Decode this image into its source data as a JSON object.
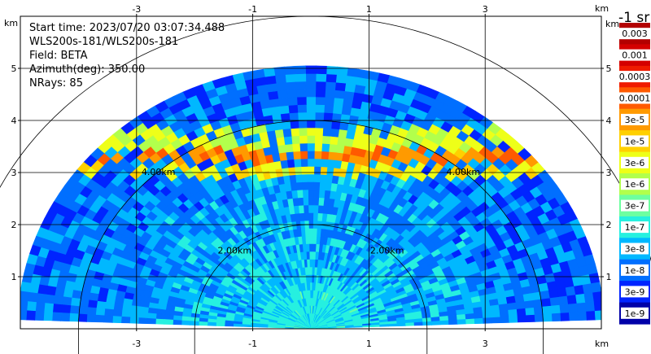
{
  "chart_data": {
    "type": "heatmap",
    "projection": "polar-sector",
    "info_lines": [
      "Start time: 2023/07/20 03:07:34.488",
      "WLS200s-181/WLS200s-181",
      "Field: BETA",
      "Azimuth(deg): 350.00",
      "NRays: 85"
    ],
    "x_unit": "km",
    "y_unit": "km",
    "xlim": [
      -5.0,
      5.0
    ],
    "ylim": [
      0.0,
      6.0
    ],
    "x_ticks": [
      -3,
      -1,
      1,
      3
    ],
    "y_ticks": [
      1,
      2,
      3,
      4,
      5
    ],
    "range_rings_km": [
      2,
      4,
      6
    ],
    "range_ring_labels": [
      "2.00km",
      "4.00km"
    ],
    "grid": true,
    "sector": {
      "elevation_deg_min": 2,
      "elevation_deg_max": 178,
      "max_range_km": 5.05,
      "layer_altitudes_km": [
        {
          "alt_km_min": 2.9,
          "alt_km_max": 3.15,
          "level": 0.55
        },
        {
          "alt_km_min": 3.2,
          "alt_km_max": 3.45,
          "level": 0.7
        },
        {
          "alt_km_min": 3.45,
          "alt_km_max": 3.85,
          "level": 0.5
        }
      ]
    },
    "colorbar": {
      "title": "-1 sr",
      "orientation": "right",
      "labels": [
        "0.003",
        "0.001",
        "0.0003",
        "0.0001",
        "3e-5",
        "1e-5",
        "3e-6",
        "1e-6",
        "3e-7",
        "1e-7",
        "3e-8",
        "1e-8",
        "3e-9",
        "1e-9"
      ],
      "colors": [
        "#b30000",
        "#d40000",
        "#ef1b00",
        "#ff5a00",
        "#ff9a00",
        "#ffd000",
        "#eeff18",
        "#b2ff4c",
        "#6dffa0",
        "#26f0e0",
        "#00b8ff",
        "#006fff",
        "#0024ff",
        "#0000a8"
      ]
    }
  }
}
